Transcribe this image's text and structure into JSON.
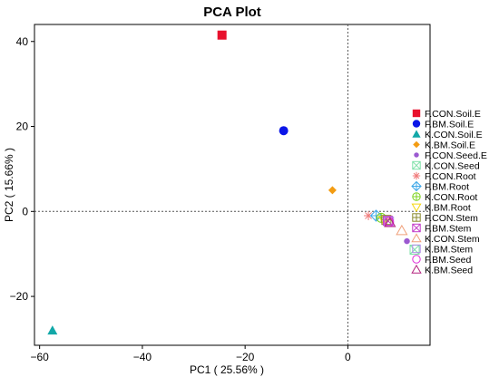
{
  "chart_data": {
    "type": "scatter",
    "title": "PCA Plot",
    "xlabel": "PC1 ( 25.56% )",
    "ylabel": "PC2 ( 15.66% )",
    "xlim": [
      -61,
      16
    ],
    "ylim": [
      -31.5,
      44
    ],
    "xticks": [
      -60,
      -40,
      -20,
      0
    ],
    "yticks": [
      -20,
      0,
      20,
      40
    ],
    "xtick_labels": [
      "−60",
      "−40",
      "−20",
      "0"
    ],
    "ytick_labels": [
      "−20",
      "0",
      "20",
      "40"
    ],
    "zero_lines": true,
    "legend_position": "right",
    "series": [
      {
        "name": "F.CON.Soil.E",
        "marker": "square-filled",
        "color": "#e8112d",
        "points": [
          [
            -24.5,
            41.5
          ]
        ]
      },
      {
        "name": "F.BM.Soil.E",
        "marker": "circle-filled",
        "color": "#0b16e8",
        "points": [
          [
            -12.5,
            19.0
          ]
        ]
      },
      {
        "name": "K.CON.Soil.E",
        "marker": "triangle-filled",
        "color": "#12a8a8",
        "points": [
          [
            -57.5,
            -28.0
          ]
        ]
      },
      {
        "name": "K.BM.Soil.E",
        "marker": "diamond-filled",
        "color": "#f39c12",
        "points": [
          [
            -3.0,
            5.0
          ]
        ]
      },
      {
        "name": "F.CON.Seed.E",
        "marker": "dot-filled",
        "color": "#9b59d0",
        "points": [
          [
            11.5,
            -7.0
          ]
        ]
      },
      {
        "name": "K.CON.Seed",
        "marker": "square-x",
        "color": "#7ee0a8",
        "points": [
          [
            13.0,
            -9.0
          ]
        ]
      },
      {
        "name": "F.CON.Root",
        "marker": "asterisk",
        "color": "#f07a7a",
        "points": [
          [
            4.0,
            -1.0
          ]
        ]
      },
      {
        "name": "F.BM.Root",
        "marker": "diamond-plus",
        "color": "#3fa8e8",
        "points": [
          [
            5.5,
            -1.0
          ]
        ]
      },
      {
        "name": "K.CON.Root",
        "marker": "circle-plus",
        "color": "#7cd31f",
        "points": [
          [
            6.5,
            -1.5
          ]
        ]
      },
      {
        "name": "K.BM.Root",
        "marker": "triangle-down",
        "color": "#f5d60c",
        "points": [
          [
            7.0,
            -2.0
          ]
        ]
      },
      {
        "name": "F.CON.Stem",
        "marker": "square-plus",
        "color": "#8a8a2e",
        "points": [
          [
            7.5,
            -2.0
          ]
        ]
      },
      {
        "name": "F.BM.Stem",
        "marker": "square-x",
        "color": "#c23ac8",
        "points": [
          [
            7.8,
            -2.2
          ]
        ]
      },
      {
        "name": "K.CON.Stem",
        "marker": "triangle-open",
        "color": "#f0a07a",
        "points": [
          [
            10.5,
            -4.5
          ]
        ]
      },
      {
        "name": "K.BM.Stem",
        "marker": "square-open",
        "color": "#b08ae8",
        "points": [
          [
            8.0,
            -2.4
          ]
        ]
      },
      {
        "name": "F.BM.Seed",
        "marker": "circle-open",
        "color": "#e02fd8",
        "points": [
          [
            8.0,
            -2.5
          ]
        ]
      },
      {
        "name": "K.BM.Seed",
        "marker": "triangle-open",
        "color": "#b3227e",
        "points": [
          [
            8.2,
            -2.6
          ]
        ]
      }
    ]
  }
}
